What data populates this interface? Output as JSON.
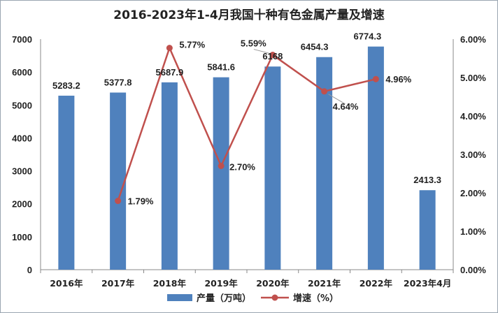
{
  "chart_data": {
    "type": "bar",
    "title": "2016-2023年1-4月我国十种有色金属产量及增速",
    "categories": [
      "2016年",
      "2017年",
      "2018年",
      "2019年",
      "2020年",
      "2021年",
      "2022年",
      "2023年4月"
    ],
    "series": [
      {
        "name": "产量（万吨）",
        "type": "bar",
        "axis": "left",
        "color": "#4f81bd",
        "values": [
          5283.2,
          5377.8,
          5687.9,
          5841.6,
          6168,
          6454.3,
          6774.3,
          2413.3
        ],
        "labels": [
          "5283.2",
          "5377.8",
          "5687.9",
          "5841.6",
          "6168",
          "6454.3",
          "6774.3",
          "2413.3"
        ]
      },
      {
        "name": "增速（%）",
        "type": "line",
        "axis": "right",
        "color": "#c0504d",
        "values": [
          null,
          1.79,
          5.77,
          2.7,
          5.59,
          4.64,
          4.96,
          null
        ],
        "labels": [
          "",
          "1.79%",
          "5.77%",
          "2.70%",
          "5.59%",
          "4.64%",
          "4.96%",
          ""
        ]
      }
    ],
    "y_left": {
      "min": 0,
      "max": 7000,
      "ticks": [
        "0",
        "1000",
        "2000",
        "3000",
        "4000",
        "5000",
        "6000",
        "7000"
      ]
    },
    "y_right": {
      "min": 0,
      "max": 6,
      "ticks": [
        "0.00%",
        "1.00%",
        "2.00%",
        "3.00%",
        "4.00%",
        "5.00%",
        "6.00%"
      ]
    },
    "grid": false,
    "legend_position": "bottom"
  }
}
